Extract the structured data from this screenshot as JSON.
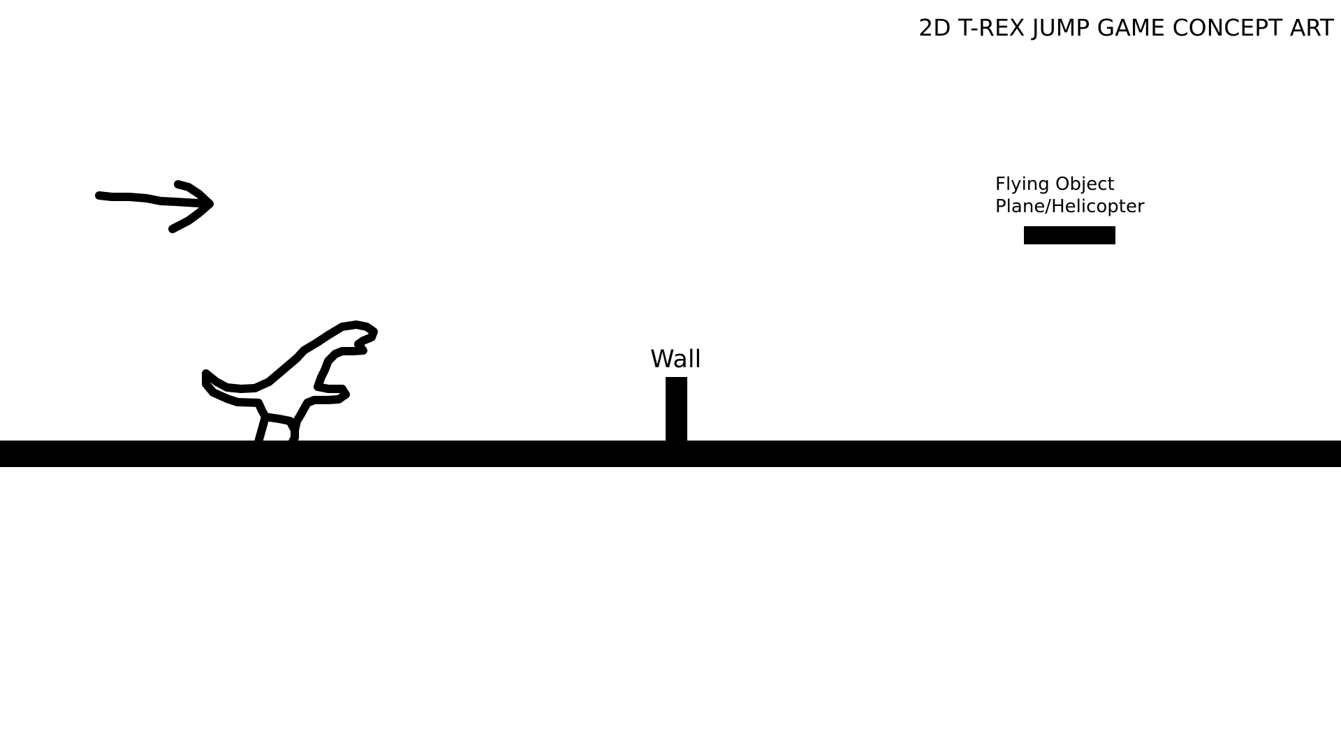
{
  "game": {
    "title": "2D T-REX JUMP GAME CONCEPT ART",
    "wall": {
      "label": "Wall"
    },
    "flying_object": {
      "label_line1": "Flying Object",
      "label_line2": "Plane/Helicopter"
    }
  },
  "icons": {
    "direction": "right-arrow-icon",
    "player": "t-rex-dinosaur-icon"
  },
  "colors": {
    "background": "#ffffff",
    "ink": "#000000"
  }
}
